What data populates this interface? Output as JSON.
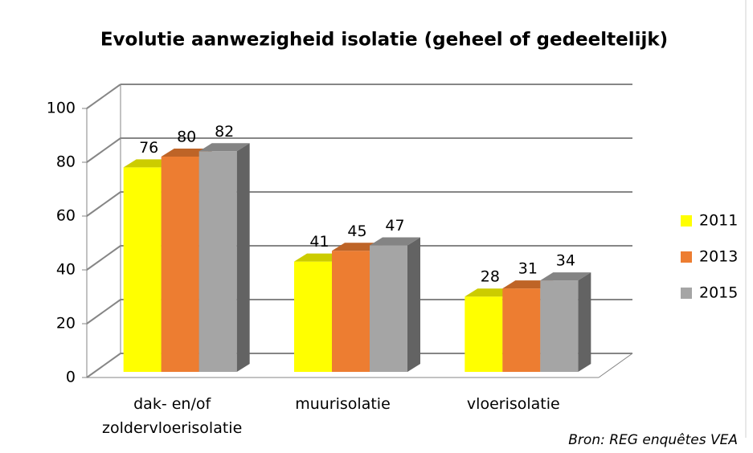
{
  "chart_data": {
    "type": "bar3d",
    "title": "Evolutie aanwezigheid isolatie (geheel of gedeeltelijk)",
    "categories": [
      "dak- en/of zoldervloerisolatie",
      "muurisolatie",
      "vloerisolatie"
    ],
    "series": [
      {
        "name": "2011",
        "color": "#ffff00",
        "values": [
          76,
          41,
          28
        ]
      },
      {
        "name": "2013",
        "color": "#ed7d31",
        "values": [
          80,
          45,
          31
        ]
      },
      {
        "name": "2015",
        "color": "#a5a5a5",
        "values": [
          82,
          47,
          34
        ]
      }
    ],
    "ylim": [
      0,
      100
    ],
    "yticks": [
      0,
      20,
      40,
      60,
      80,
      100
    ],
    "grid": true,
    "legend": "right",
    "source": "Bron: REG enquêtes VEA"
  }
}
